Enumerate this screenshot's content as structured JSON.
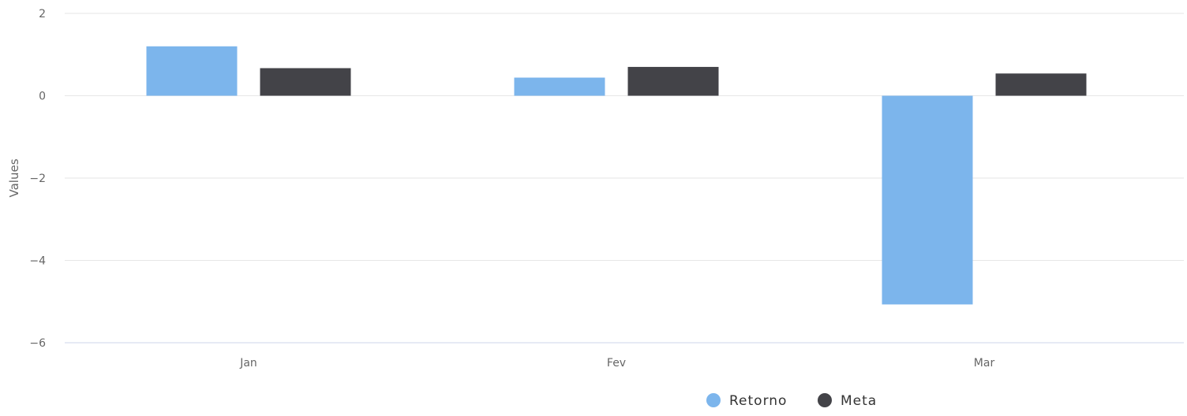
{
  "chart_data": {
    "type": "bar",
    "title": "",
    "xlabel": "",
    "ylabel": "Values",
    "categories": [
      "Jan",
      "Fev",
      "Mar"
    ],
    "series": [
      {
        "name": "Retorno",
        "values": [
          1.2,
          0.44,
          -5.07
        ],
        "color": "#7cb5ec"
      },
      {
        "name": "Meta",
        "values": [
          0.67,
          0.7,
          0.54
        ],
        "color": "#434348"
      }
    ],
    "ylim": [
      -6,
      2
    ],
    "yticks": [
      2,
      0,
      -2,
      -4,
      -6
    ],
    "ytick_labels": [
      "2",
      "0",
      "−2",
      "−4",
      "−6"
    ],
    "grid": true,
    "legend_position": "bottom-center"
  }
}
